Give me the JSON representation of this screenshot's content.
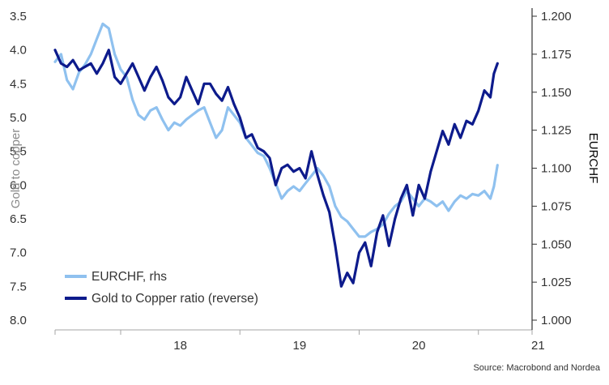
{
  "chart_data": {
    "type": "line",
    "x_axis": {
      "tick_labels": [
        "18",
        "19",
        "20",
        "21"
      ],
      "range": [
        2017.45,
        2021.45
      ]
    },
    "y_left": {
      "label": "Gold to copper",
      "ticks": [
        "3.5",
        "4.0",
        "4.5",
        "5.0",
        "5.5",
        "6.0",
        "6.5",
        "7.0",
        "7.5",
        "8.0"
      ],
      "range": [
        3.5,
        8.0
      ],
      "reversed": true
    },
    "y_right": {
      "label": "EURCHF",
      "ticks": [
        "1.200",
        "1.175",
        "1.150",
        "1.125",
        "1.100",
        "1.075",
        "1.050",
        "1.025",
        "1.000"
      ],
      "range": [
        1.0,
        1.2
      ]
    },
    "grid": false,
    "legend_position": "bottom-left",
    "series": [
      {
        "name": "EURCHF, rhs",
        "axis": "right",
        "color": "#8fc1ef",
        "x": [
          2017.45,
          2017.5,
          2017.55,
          2017.6,
          2017.65,
          2017.7,
          2017.75,
          2017.8,
          2017.85,
          2017.9,
          2017.95,
          2018.0,
          2018.05,
          2018.1,
          2018.15,
          2018.2,
          2018.25,
          2018.3,
          2018.35,
          2018.4,
          2018.45,
          2018.5,
          2018.55,
          2018.6,
          2018.65,
          2018.7,
          2018.75,
          2018.8,
          2018.85,
          2018.9,
          2018.95,
          2019.0,
          2019.05,
          2019.1,
          2019.15,
          2019.2,
          2019.25,
          2019.3,
          2019.35,
          2019.4,
          2019.45,
          2019.5,
          2019.55,
          2019.6,
          2019.65,
          2019.7,
          2019.75,
          2019.8,
          2019.85,
          2019.9,
          2019.95,
          2020.0,
          2020.05,
          2020.1,
          2020.15,
          2020.2,
          2020.25,
          2020.3,
          2020.35,
          2020.4,
          2020.45,
          2020.5,
          2020.55,
          2020.6,
          2020.65,
          2020.7,
          2020.75,
          2020.8,
          2020.85,
          2020.9,
          2020.95,
          2021.0,
          2021.05,
          2021.1,
          2021.13,
          2021.16
        ],
        "values": [
          1.17,
          1.175,
          1.158,
          1.152,
          1.163,
          1.168,
          1.175,
          1.185,
          1.195,
          1.192,
          1.175,
          1.165,
          1.16,
          1.145,
          1.135,
          1.132,
          1.138,
          1.14,
          1.132,
          1.125,
          1.13,
          1.128,
          1.132,
          1.135,
          1.138,
          1.14,
          1.13,
          1.12,
          1.125,
          1.14,
          1.135,
          1.13,
          1.12,
          1.115,
          1.11,
          1.108,
          1.1,
          1.09,
          1.08,
          1.085,
          1.088,
          1.085,
          1.09,
          1.095,
          1.1,
          1.095,
          1.088,
          1.075,
          1.068,
          1.065,
          1.06,
          1.055,
          1.055,
          1.058,
          1.06,
          1.063,
          1.07,
          1.075,
          1.078,
          1.085,
          1.08,
          1.075,
          1.08,
          1.078,
          1.075,
          1.078,
          1.072,
          1.078,
          1.082,
          1.08,
          1.083,
          1.082,
          1.085,
          1.08,
          1.088,
          1.102
        ]
      },
      {
        "name": "Gold to Copper ratio (reverse)",
        "axis": "left",
        "color": "#0d1b8c",
        "x": [
          2017.45,
          2017.5,
          2017.55,
          2017.6,
          2017.65,
          2017.7,
          2017.75,
          2017.8,
          2017.85,
          2017.9,
          2017.95,
          2018.0,
          2018.05,
          2018.1,
          2018.15,
          2018.2,
          2018.25,
          2018.3,
          2018.35,
          2018.4,
          2018.45,
          2018.5,
          2018.55,
          2018.6,
          2018.65,
          2018.7,
          2018.75,
          2018.8,
          2018.85,
          2018.9,
          2018.95,
          2019.0,
          2019.05,
          2019.1,
          2019.15,
          2019.2,
          2019.25,
          2019.3,
          2019.35,
          2019.4,
          2019.45,
          2019.5,
          2019.55,
          2019.6,
          2019.65,
          2019.7,
          2019.75,
          2019.8,
          2019.85,
          2019.9,
          2019.95,
          2020.0,
          2020.05,
          2020.1,
          2020.15,
          2020.2,
          2020.25,
          2020.3,
          2020.35,
          2020.4,
          2020.45,
          2020.5,
          2020.55,
          2020.6,
          2020.65,
          2020.7,
          2020.75,
          2020.8,
          2020.85,
          2020.9,
          2020.95,
          2021.0,
          2021.05,
          2021.1,
          2021.13,
          2021.16
        ],
        "values": [
          4.0,
          4.2,
          4.25,
          4.15,
          4.3,
          4.25,
          4.2,
          4.35,
          4.2,
          4.0,
          4.4,
          4.5,
          4.35,
          4.2,
          4.4,
          4.6,
          4.4,
          4.25,
          4.45,
          4.7,
          4.8,
          4.7,
          4.4,
          4.6,
          4.8,
          4.5,
          4.5,
          4.65,
          4.75,
          4.55,
          4.8,
          5.0,
          5.3,
          5.25,
          5.45,
          5.5,
          5.6,
          6.0,
          5.75,
          5.7,
          5.8,
          5.75,
          5.9,
          5.5,
          5.85,
          6.15,
          6.4,
          6.9,
          7.5,
          7.3,
          7.45,
          7.0,
          6.85,
          7.2,
          6.7,
          6.45,
          6.9,
          6.5,
          6.2,
          6.0,
          6.45,
          6.0,
          6.2,
          5.8,
          5.5,
          5.2,
          5.4,
          5.1,
          5.3,
          5.05,
          5.1,
          4.9,
          4.6,
          4.7,
          4.35,
          4.2
        ]
      }
    ],
    "source": "Source: Macrobond and Nordea"
  }
}
